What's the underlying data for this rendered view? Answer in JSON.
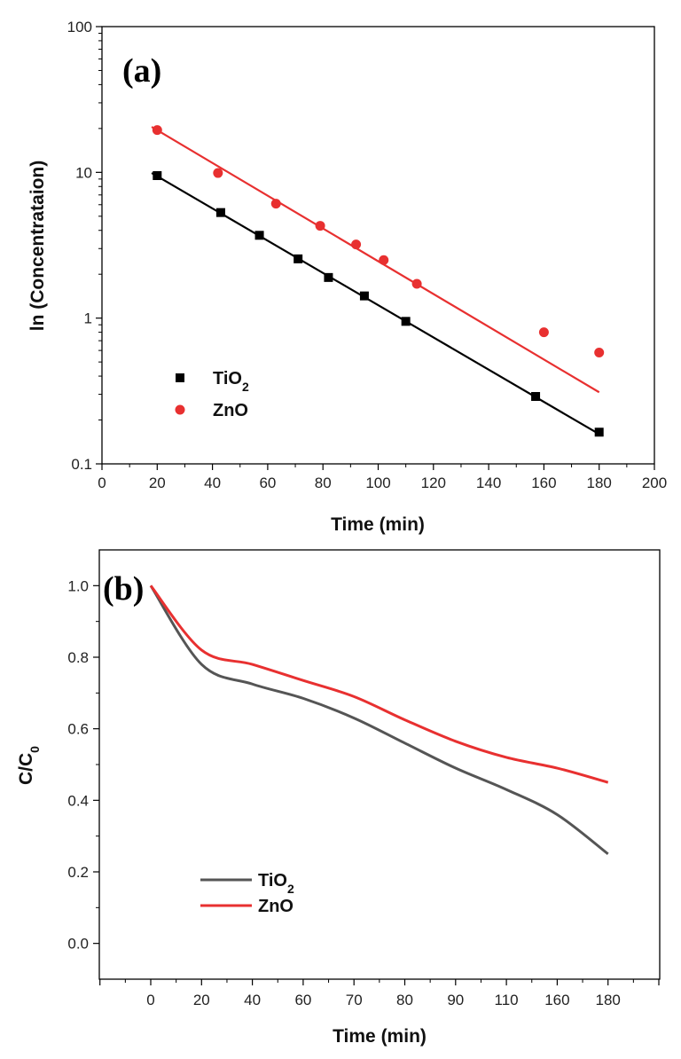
{
  "chart_data": [
    {
      "type": "scatter",
      "panel_label": "(a)",
      "xlabel": "Time (min)",
      "ylabel": "ln (Concentrataion)",
      "xlim": [
        0,
        200
      ],
      "ylim": [
        0.1,
        100
      ],
      "yscale": "log",
      "xticks": [
        "0",
        "20",
        "40",
        "60",
        "80",
        "100",
        "120",
        "140",
        "160",
        "180",
        "200"
      ],
      "yticks": [
        "0.1",
        "1",
        "10",
        "100"
      ],
      "legend": {
        "position": "bottom-left"
      },
      "series": [
        {
          "name": "TiO2",
          "label_main": "TiO",
          "label_sub": "2",
          "marker": "square",
          "color": "#000000",
          "points": [
            [
              20,
              9.5
            ],
            [
              43,
              5.3
            ],
            [
              57,
              3.7
            ],
            [
              71,
              2.55
            ],
            [
              82,
              1.9
            ],
            [
              95,
              1.42
            ],
            [
              110,
              0.95
            ],
            [
              157,
              0.29
            ],
            [
              180,
              0.165
            ]
          ],
          "fit": [
            [
              18,
              9.9
            ],
            [
              180,
              0.16
            ]
          ]
        },
        {
          "name": "ZnO",
          "label_main": "ZnO",
          "label_sub": "",
          "marker": "circle",
          "color": "#e83030",
          "points": [
            [
              20,
              19.5
            ],
            [
              42,
              9.9
            ],
            [
              63,
              6.1
            ],
            [
              79,
              4.3
            ],
            [
              92,
              3.2
            ],
            [
              102,
              2.5
            ],
            [
              114,
              1.72
            ],
            [
              160,
              0.8
            ],
            [
              180,
              0.58
            ]
          ],
          "fit": [
            [
              18,
              20.5
            ],
            [
              180,
              0.31
            ]
          ]
        }
      ]
    },
    {
      "type": "line",
      "panel_label": "(b)",
      "xlabel": "Time (min)",
      "ylabel_main": "C/C",
      "ylabel_sub": "0",
      "categories": [
        "0",
        "20",
        "40",
        "60",
        "70",
        "80",
        "90",
        "110",
        "160",
        "180"
      ],
      "ylim": [
        -0.1,
        1.1
      ],
      "yticks": [
        "0.0",
        "0.2",
        "0.4",
        "0.6",
        "0.8",
        "1.0"
      ],
      "legend": {
        "position": "bottom-left"
      },
      "series": [
        {
          "name": "TiO2",
          "label_main": "TiO",
          "label_sub": "2",
          "color": "#555555",
          "values": [
            1.0,
            0.78,
            0.725,
            0.685,
            0.63,
            0.56,
            0.49,
            0.43,
            0.36,
            0.25
          ]
        },
        {
          "name": "ZnO",
          "label_main": "ZnO",
          "label_sub": "",
          "color": "#e83030",
          "values": [
            1.0,
            0.82,
            0.78,
            0.735,
            0.69,
            0.625,
            0.565,
            0.52,
            0.49,
            0.45
          ]
        }
      ]
    }
  ]
}
